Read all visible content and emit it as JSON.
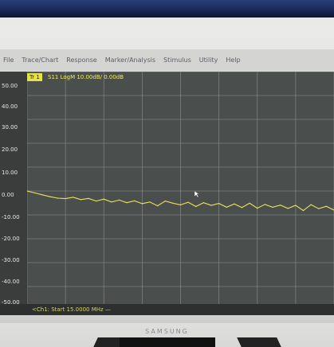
{
  "window": {
    "title": ""
  },
  "menu": [
    "File",
    "Trace/Chart",
    "Response",
    "Marker/Analysis",
    "Stimulus",
    "Utility",
    "Help"
  ],
  "trace": {
    "tag": "Tr 1",
    "title": "S11 LogM 10.00dB/ 0.00dB"
  },
  "status": {
    "text": "<Ch1: Start 15.0000 MHz —"
  },
  "brand": "SAMSUNG",
  "y_ticks": [
    "50.00",
    "40.00",
    "30.00",
    "20.00",
    "10.00",
    "0.00",
    "-10.00",
    "-20.00",
    "-30.00",
    "-40.00",
    "-50.00"
  ],
  "chart_data": {
    "type": "line",
    "title": "S11 LogM 10.00dB/ 0.00dB",
    "xlabel": "",
    "ylabel": "",
    "ylim": [
      -50,
      50
    ],
    "grid": true,
    "series": [
      {
        "values": [
          0.0,
          -0.8,
          -1.6,
          -2.4,
          -3.0,
          -3.2,
          -2.6,
          -3.6,
          -3.1,
          -4.2,
          -3.4,
          -4.6,
          -3.8,
          -4.9,
          -4.1,
          -5.3,
          -4.6,
          -6.2,
          -4.2,
          -5.1,
          -5.8,
          -4.7,
          -6.5,
          -4.9,
          -6.0,
          -5.2,
          -6.8,
          -5.4,
          -6.9,
          -5.1,
          -7.2,
          -5.6,
          -6.8,
          -5.9,
          -7.3,
          -6.0,
          -8.2,
          -5.7,
          -7.4,
          -6.4,
          -8.0
        ]
      }
    ]
  }
}
